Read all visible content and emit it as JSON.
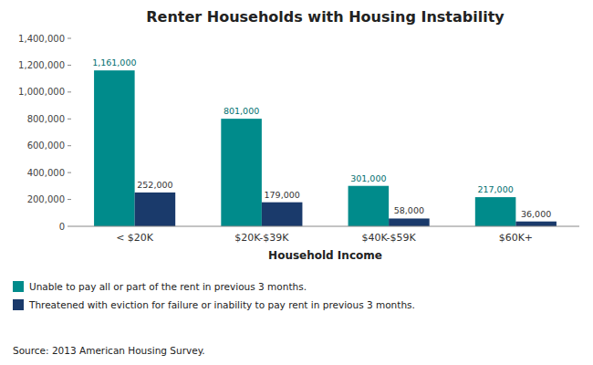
{
  "chart_data": {
    "type": "bar",
    "title": "Renter Households  with  Housing Instability",
    "x_label": "Household Income",
    "categories": [
      "< $20K",
      "$20K-$39K",
      "$40K-$59K",
      "$60K+"
    ],
    "series": [
      {
        "name": "Unable to pay all or part of the rent in previous 3 months.",
        "color": "#008B8B",
        "values": [
          1161000,
          801000,
          301000,
          217000
        ],
        "value_labels": [
          "1,161,000",
          "801,000",
          "301,000",
          "217,000"
        ]
      },
      {
        "name": "Threatened with eviction for failure or inability to pay rent in previous 3 months.",
        "color": "#1A3A6B",
        "values": [
          252000,
          179000,
          58000,
          36000
        ],
        "value_labels": [
          "252,000",
          "179,000",
          "58,000",
          "36,000"
        ]
      }
    ],
    "ylim": [
      0,
      1400000
    ],
    "yticks": [
      0,
      {
        "value": 200000,
        "label": "200,000"
      },
      {
        "value": 400000,
        "label": "400,000"
      },
      {
        "value": 600000,
        "label": "600,000"
      },
      {
        "value": 800000,
        "label": "800,000"
      },
      {
        "value": 1000000,
        "label": "1,000,000"
      },
      {
        "value": 1200000,
        "label": "1,200,000"
      },
      {
        "value": 1400000,
        "label": "1,400,000"
      }
    ],
    "data_labels": true,
    "grid": false,
    "legend": "bottom",
    "annotations": [
      "Source: 2013 American Housing Survey."
    ]
  }
}
